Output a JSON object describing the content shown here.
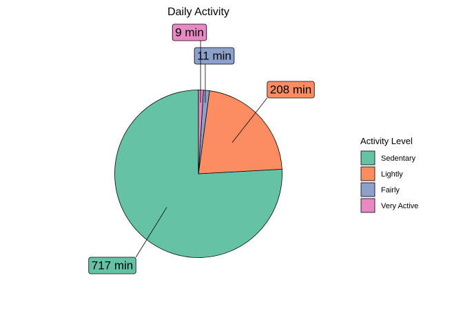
{
  "chart_data": {
    "type": "pie",
    "title": "Daily Activity",
    "legend": {
      "title": "Activity Level",
      "placement": "right"
    },
    "unit": "min",
    "slices": [
      {
        "name": "Sedentary",
        "value": 717,
        "label": "717 min",
        "color": "#66C2A5"
      },
      {
        "name": "Lightly",
        "value": 208,
        "label": "208 min",
        "color": "#FC8D62"
      },
      {
        "name": "Fairly",
        "value": 11,
        "label": "11 min",
        "color": "#8DA0CB"
      },
      {
        "name": "Very Active",
        "value": 9,
        "label": "9 min",
        "color": "#E78AC3"
      }
    ]
  }
}
